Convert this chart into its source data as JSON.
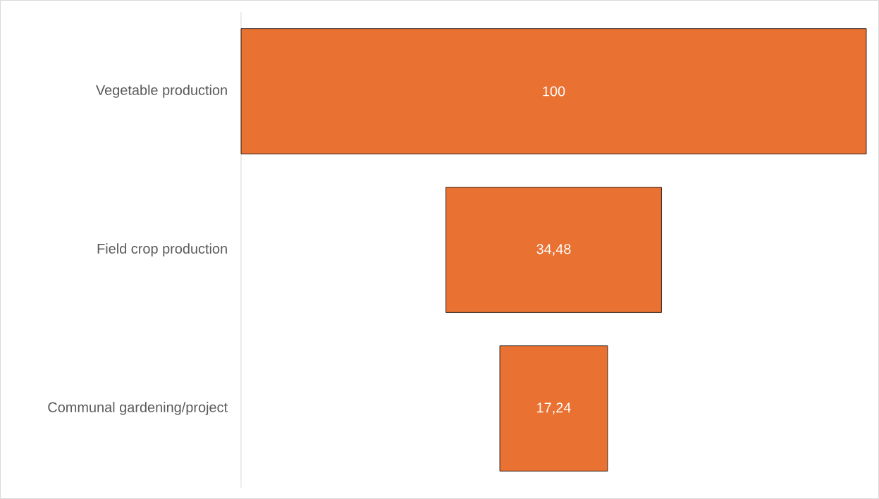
{
  "chart_data": {
    "type": "other",
    "categories": [
      "Vegetable production",
      "Field crop production",
      "Communal gardening/project"
    ],
    "values": [
      100,
      34.48,
      17.24
    ],
    "value_labels": [
      "100",
      "34,48",
      "17,24"
    ],
    "color": "#e97132"
  }
}
